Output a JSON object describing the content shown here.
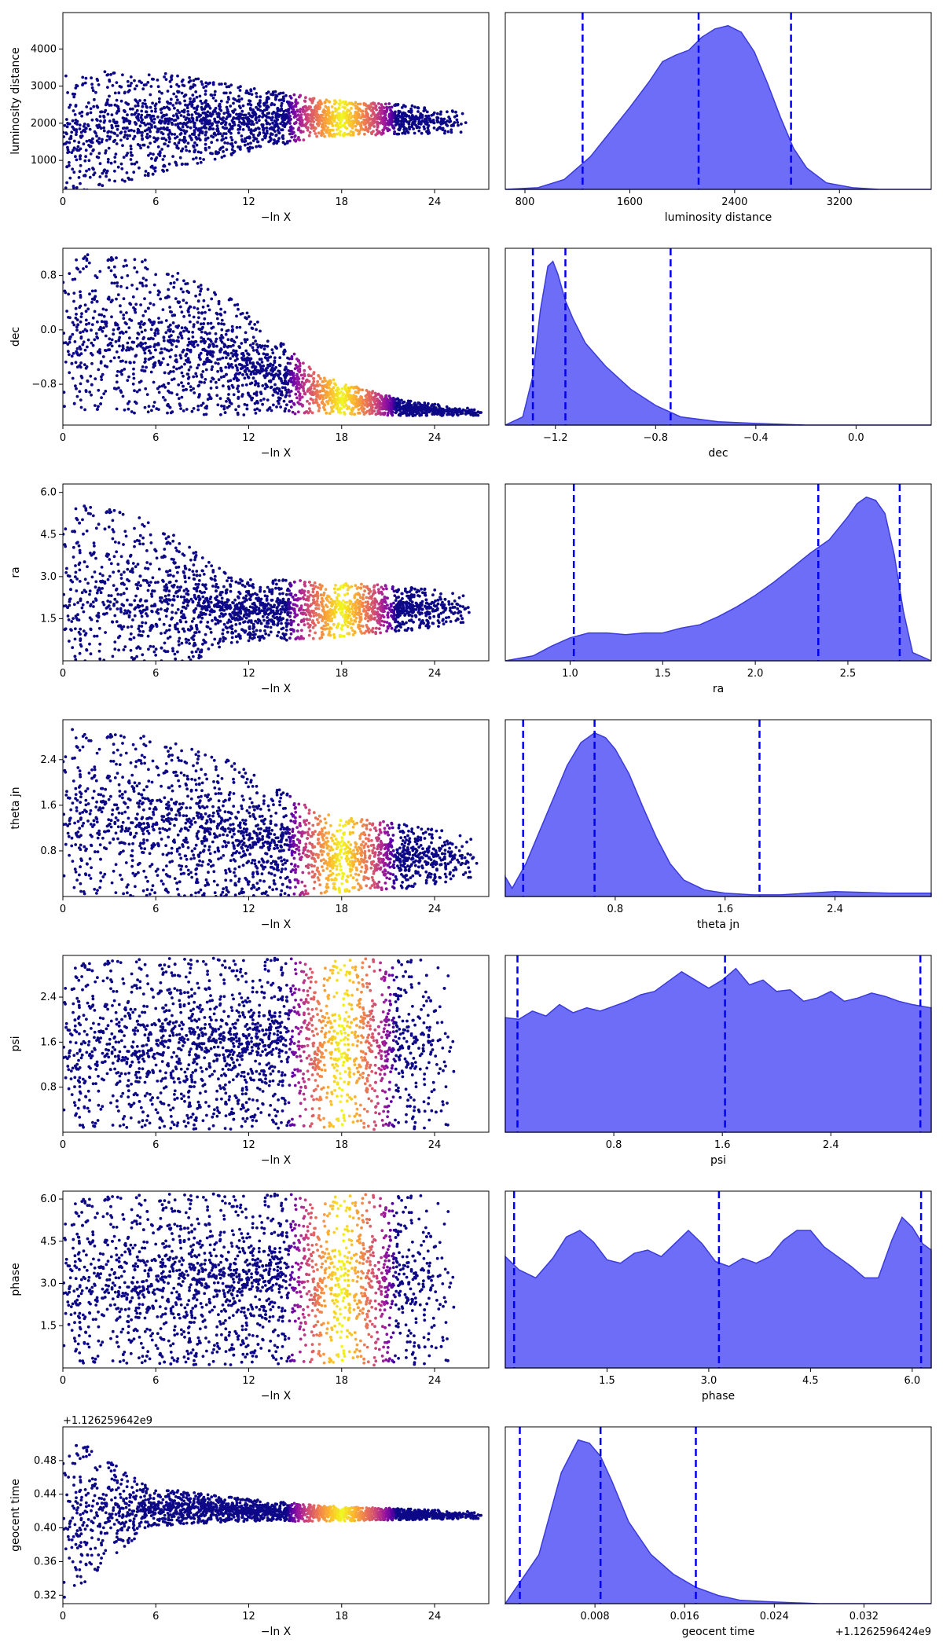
{
  "colors": {
    "density_fill": "#6565f7",
    "density_edge": "#3b3bd9",
    "quantile_line": "#0000ee",
    "scatter_low": "#0d0887",
    "scatter_mid": "#cc4778",
    "scatter_high": "#f0f921"
  },
  "chart_data": [
    {
      "type": "scatter",
      "panel": "trace",
      "xlabel": "−ln X",
      "ylabel": "luminosity distance",
      "xlim": [
        0,
        27.5
      ],
      "ylim": [
        220,
        4980
      ],
      "xticks": [
        0,
        6,
        12,
        18,
        24
      ],
      "yticks": [
        1000,
        2000,
        3000,
        4000
      ],
      "shape": {
        "center": [
          1700,
          2000,
          2100,
          2150,
          2100,
          2000
        ],
        "spread": [
          1750,
          1500,
          1000,
          550,
          420,
          250
        ],
        "taper_start": 21,
        "taper_end": 26.5
      },
      "hot_zone": [
        14.5,
        21.5
      ]
    },
    {
      "type": "area",
      "panel": "posterior",
      "xlabel": "luminosity distance",
      "xlim": [
        650,
        3900
      ],
      "xticks": [
        800,
        1600,
        2400,
        3200
      ],
      "xtick_labels": [
        "800",
        "1600",
        "2400",
        "3200"
      ],
      "x": [
        650,
        900,
        1100,
        1300,
        1450,
        1600,
        1750,
        1850,
        1950,
        2050,
        2150,
        2250,
        2350,
        2450,
        2550,
        2650,
        2750,
        2850,
        2950,
        3100,
        3300,
        3500,
        3900
      ],
      "density": [
        0.0,
        0.01,
        0.06,
        0.2,
        0.35,
        0.5,
        0.66,
        0.78,
        0.82,
        0.85,
        0.93,
        0.98,
        1.0,
        0.96,
        0.84,
        0.65,
        0.44,
        0.25,
        0.13,
        0.04,
        0.01,
        0.0,
        0.0
      ],
      "quantiles": [
        1240,
        2125,
        2830
      ]
    },
    {
      "type": "scatter",
      "panel": "trace",
      "xlabel": "−ln X",
      "ylabel": "dec",
      "xlim": [
        0,
        27.5
      ],
      "ylim": [
        -1.4,
        1.2
      ],
      "xticks": [
        0,
        6,
        12,
        18,
        24
      ],
      "yticks": [
        -0.8,
        0.0,
        0.8
      ],
      "ytick_labels": [
        "−0.8",
        "0.0",
        "0.8"
      ],
      "shape": {
        "center": [
          0.0,
          -0.1,
          -0.4,
          -0.95,
          -1.15,
          -1.22
        ],
        "spread": [
          1.25,
          1.2,
          0.9,
          0.3,
          0.12,
          0.04
        ],
        "taper_start": 22,
        "taper_end": 27.5
      },
      "hot_zone": [
        14.5,
        21.5
      ]
    },
    {
      "type": "area",
      "panel": "posterior",
      "xlabel": "dec",
      "xlim": [
        -1.4,
        0.3
      ],
      "xticks": [
        -1.2,
        -0.8,
        -0.4,
        0.0
      ],
      "xtick_labels": [
        "−1.2",
        "−0.8",
        "−0.4",
        "0.0"
      ],
      "x": [
        -1.4,
        -1.33,
        -1.29,
        -1.26,
        -1.23,
        -1.21,
        -1.19,
        -1.16,
        -1.13,
        -1.08,
        -1.0,
        -0.9,
        -0.8,
        -0.7,
        -0.55,
        -0.4,
        -0.2,
        0.3
      ],
      "density": [
        0.0,
        0.05,
        0.3,
        0.7,
        0.97,
        1.0,
        0.92,
        0.76,
        0.65,
        0.5,
        0.36,
        0.22,
        0.12,
        0.05,
        0.02,
        0.01,
        0.0,
        0.0
      ],
      "quantiles": [
        -1.29,
        -1.16,
        -0.74
      ]
    },
    {
      "type": "scatter",
      "panel": "trace",
      "xlabel": "−ln X",
      "ylabel": "ra",
      "xlim": [
        0,
        27.5
      ],
      "ylim": [
        0.0,
        6.3
      ],
      "xticks": [
        0,
        6,
        12,
        18,
        24
      ],
      "yticks": [
        1.5,
        3.0,
        4.5,
        6.0
      ],
      "shape": {
        "center": [
          2.5,
          2.2,
          1.8,
          1.8,
          1.85,
          1.9
        ],
        "spread": [
          3.6,
          3.1,
          1.2,
          1.1,
          0.85,
          0.45
        ],
        "taper_start": 22,
        "taper_end": 26.5
      },
      "hot_zone": [
        14.5,
        21.5
      ]
    },
    {
      "type": "area",
      "panel": "posterior",
      "xlabel": "ra",
      "xlim": [
        0.65,
        2.95
      ],
      "xticks": [
        1.0,
        1.5,
        2.0,
        2.5
      ],
      "xtick_labels": [
        "1.0",
        "1.5",
        "2.0",
        "2.5"
      ],
      "x": [
        0.65,
        0.8,
        0.9,
        1.0,
        1.1,
        1.2,
        1.3,
        1.4,
        1.5,
        1.6,
        1.7,
        1.8,
        1.9,
        2.0,
        2.1,
        2.2,
        2.3,
        2.4,
        2.5,
        2.55,
        2.6,
        2.65,
        2.7,
        2.75,
        2.8,
        2.85,
        2.95
      ],
      "density": [
        0.0,
        0.03,
        0.09,
        0.14,
        0.17,
        0.17,
        0.16,
        0.17,
        0.17,
        0.2,
        0.22,
        0.27,
        0.33,
        0.4,
        0.48,
        0.57,
        0.66,
        0.74,
        0.88,
        0.96,
        1.0,
        0.98,
        0.9,
        0.65,
        0.3,
        0.05,
        0.0
      ],
      "quantiles": [
        1.02,
        2.34,
        2.78
      ]
    },
    {
      "type": "scatter",
      "panel": "trace",
      "xlabel": "−ln X",
      "ylabel": "theta jn",
      "xlim": [
        0,
        27.5
      ],
      "ylim": [
        0.0,
        3.1
      ],
      "xticks": [
        0,
        6,
        12,
        18,
        24
      ],
      "yticks": [
        0.8,
        1.6,
        2.4
      ],
      "shape": {
        "center": [
          1.5,
          1.4,
          1.1,
          0.75,
          0.7,
          0.7
        ],
        "spread": [
          1.55,
          1.5,
          1.35,
          0.75,
          0.6,
          0.35
        ],
        "taper_start": 22,
        "taper_end": 27
      },
      "hot_zone": [
        14.5,
        21.5
      ]
    },
    {
      "type": "area",
      "panel": "posterior",
      "xlabel": "theta jn",
      "xlim": [
        0.0,
        3.1
      ],
      "xticks": [
        0.8,
        1.6,
        2.4
      ],
      "xtick_labels": [
        "0.8",
        "1.6",
        "2.4"
      ],
      "x": [
        0.0,
        0.05,
        0.15,
        0.3,
        0.45,
        0.55,
        0.65,
        0.73,
        0.8,
        0.9,
        1.0,
        1.1,
        1.2,
        1.3,
        1.45,
        1.6,
        1.8,
        2.0,
        2.4,
        2.8,
        3.1
      ],
      "density": [
        0.12,
        0.05,
        0.2,
        0.5,
        0.8,
        0.94,
        1.0,
        0.97,
        0.9,
        0.75,
        0.55,
        0.36,
        0.2,
        0.1,
        0.04,
        0.02,
        0.01,
        0.01,
        0.03,
        0.02,
        0.02
      ],
      "quantiles": [
        0.13,
        0.65,
        1.85
      ]
    },
    {
      "type": "scatter",
      "panel": "trace",
      "xlabel": "−ln X",
      "ylabel": "psi",
      "xlim": [
        0,
        27.5
      ],
      "ylim": [
        0.0,
        3.14
      ],
      "xticks": [
        0,
        6,
        12,
        18,
        24
      ],
      "yticks": [
        0.8,
        1.6,
        2.4
      ],
      "shape": {
        "center": [
          1.57,
          1.57,
          1.57,
          1.57,
          1.57,
          1.57
        ],
        "spread": [
          1.6,
          1.6,
          1.6,
          1.6,
          1.6,
          1.6
        ],
        "taper_start": 21,
        "taper_end": 25.5
      },
      "hot_zone": [
        14.5,
        21.5
      ]
    },
    {
      "type": "area",
      "panel": "posterior",
      "xlabel": "psi",
      "xlim": [
        0.0,
        3.14
      ],
      "xticks": [
        0.8,
        1.6,
        2.4
      ],
      "xtick_labels": [
        "0.8",
        "1.6",
        "2.4"
      ],
      "x": [
        0.0,
        0.1,
        0.2,
        0.3,
        0.4,
        0.5,
        0.6,
        0.7,
        0.8,
        0.9,
        1.0,
        1.1,
        1.2,
        1.3,
        1.4,
        1.5,
        1.6,
        1.7,
        1.8,
        1.9,
        2.0,
        2.1,
        2.2,
        2.3,
        2.4,
        2.5,
        2.6,
        2.7,
        2.8,
        2.9,
        3.0,
        3.14
      ],
      "density": [
        0.7,
        0.69,
        0.74,
        0.71,
        0.78,
        0.73,
        0.76,
        0.74,
        0.77,
        0.8,
        0.84,
        0.86,
        0.92,
        0.98,
        0.93,
        0.88,
        0.93,
        1.0,
        0.9,
        0.93,
        0.86,
        0.87,
        0.8,
        0.82,
        0.86,
        0.8,
        0.82,
        0.85,
        0.83,
        0.8,
        0.78,
        0.76
      ],
      "quantiles": [
        0.09,
        1.62,
        3.06
      ]
    },
    {
      "type": "scatter",
      "panel": "trace",
      "xlabel": "−ln X",
      "ylabel": "phase",
      "xlim": [
        0,
        27.5
      ],
      "ylim": [
        0.0,
        6.28
      ],
      "xticks": [
        0,
        6,
        12,
        18,
        24
      ],
      "yticks": [
        1.5,
        3.0,
        4.5,
        6.0
      ],
      "shape": {
        "center": [
          3.14,
          3.14,
          3.14,
          3.14,
          3.14,
          3.14
        ],
        "spread": [
          3.2,
          3.2,
          3.2,
          3.2,
          3.2,
          3.2
        ],
        "taper_start": 21,
        "taper_end": 25.5
      },
      "hot_zone": [
        14.5,
        21.5
      ]
    },
    {
      "type": "area",
      "panel": "posterior",
      "xlabel": "phase",
      "xlim": [
        0.0,
        6.28
      ],
      "xticks": [
        1.5,
        3.0,
        4.5,
        6.0
      ],
      "xtick_labels": [
        "1.5",
        "3.0",
        "4.5",
        "6.0"
      ],
      "x": [
        0.0,
        0.2,
        0.45,
        0.7,
        0.9,
        1.1,
        1.3,
        1.5,
        1.7,
        1.9,
        2.1,
        2.3,
        2.5,
        2.7,
        2.9,
        3.1,
        3.3,
        3.5,
        3.7,
        3.9,
        4.1,
        4.3,
        4.5,
        4.7,
        4.9,
        5.1,
        5.3,
        5.5,
        5.7,
        5.85,
        6.0,
        6.15,
        6.28
      ],
      "density": [
        0.68,
        0.6,
        0.55,
        0.67,
        0.8,
        0.84,
        0.77,
        0.66,
        0.64,
        0.7,
        0.72,
        0.68,
        0.76,
        0.84,
        0.76,
        0.65,
        0.62,
        0.67,
        0.64,
        0.68,
        0.78,
        0.84,
        0.84,
        0.74,
        0.68,
        0.62,
        0.55,
        0.55,
        0.78,
        0.92,
        0.86,
        0.76,
        0.72
      ],
      "quantiles": [
        0.13,
        3.15,
        6.13
      ]
    },
    {
      "type": "scatter",
      "panel": "trace",
      "xlabel": "−ln X",
      "ylabel": "geocent time",
      "ylim_offset": "+1.126259642e9",
      "xlim": [
        0,
        27.5
      ],
      "ylim": [
        0.31,
        0.52
      ],
      "xticks": [
        0,
        6,
        12,
        18,
        24
      ],
      "yticks": [
        0.32,
        0.36,
        0.4,
        0.44,
        0.48
      ],
      "ytick_labels": [
        "0.32",
        "0.36",
        "0.40",
        "0.44",
        "0.48"
      ],
      "shape": {
        "center": [
          0.415,
          0.425,
          0.422,
          0.417,
          0.416,
          0.415
        ],
        "spread": [
          0.11,
          0.025,
          0.015,
          0.01,
          0.007,
          0.004
        ],
        "taper_start": 22,
        "taper_end": 27.5
      },
      "hot_zone": [
        14.5,
        21.5
      ]
    },
    {
      "type": "area",
      "panel": "posterior",
      "xlabel": "geocent time",
      "xlim_offset": "+1.1262596424e9",
      "xlim": [
        0.0,
        0.038
      ],
      "xticks": [
        0.008,
        0.016,
        0.024,
        0.032
      ],
      "xtick_labels": [
        "0.008",
        "0.016",
        "0.024",
        "0.032"
      ],
      "x": [
        0.0,
        0.003,
        0.005,
        0.0065,
        0.0075,
        0.0085,
        0.0095,
        0.011,
        0.013,
        0.015,
        0.017,
        0.019,
        0.021,
        0.024,
        0.028,
        0.038
      ],
      "density": [
        0.0,
        0.3,
        0.8,
        1.0,
        0.98,
        0.9,
        0.75,
        0.5,
        0.3,
        0.18,
        0.1,
        0.05,
        0.02,
        0.01,
        0.0,
        0.0
      ],
      "quantiles": [
        0.0013,
        0.0085,
        0.017
      ]
    }
  ]
}
